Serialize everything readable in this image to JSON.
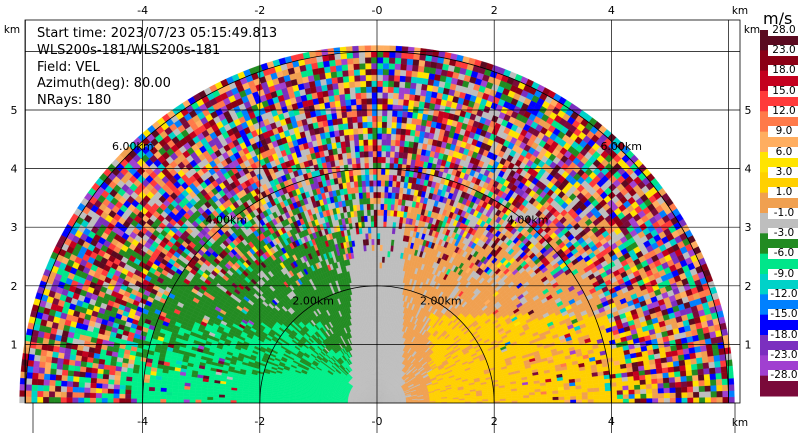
{
  "info": {
    "start_time": "Start time: 2023/07/23 05:15:49.813",
    "instrument": "WLS200s-181/WLS200s-181",
    "field": "Field: VEL",
    "azimuth": "Azimuth(deg): 80.00",
    "nrays": "NRays: 180"
  },
  "axes": {
    "unit": "km",
    "x_ticks": [
      "-4",
      "-2",
      "-0",
      "2",
      "4"
    ],
    "y_ticks": [
      "1",
      "2",
      "3",
      "4",
      "5"
    ],
    "range_ring_labels": [
      "2.00km",
      "4.00km",
      "6.00km"
    ]
  },
  "colorbar": {
    "title": "m/s",
    "labels": [
      "28.0",
      "23.0",
      "18.0",
      "15.0",
      "12.0",
      "9.0",
      "6.0",
      "3.0",
      "1.0",
      "-1.0",
      "-3.0",
      "-6.0",
      "-9.0",
      "-12.0",
      "-15.0",
      "-18.0",
      "-23.0",
      "-28.0"
    ],
    "colors": [
      "#5a0a20",
      "#8b0015",
      "#c4001e",
      "#ff3a3a",
      "#ff7a4a",
      "#ffae60",
      "#ffe400",
      "#ffd000",
      "#f0a050",
      "#bebebe",
      "#228b22",
      "#00e68a",
      "#00d2c8",
      "#0080ff",
      "#0000ff",
      "#7b2fbf",
      "#a040d0",
      "#7a0a3a"
    ]
  },
  "chart_data": {
    "type": "heatmap",
    "title": "Start time: 2023/07/23 05:15:49.813",
    "xlabel": "km",
    "ylabel": "km",
    "xlim": [
      -6.2,
      6.2
    ],
    "ylim": [
      0,
      6.2
    ],
    "field": "VEL",
    "units": "m/s",
    "azimuth_deg": 80.0,
    "nrays": 180,
    "max_range_km": 6.0,
    "range_rings_km": [
      2.0,
      4.0,
      6.0
    ]
  }
}
